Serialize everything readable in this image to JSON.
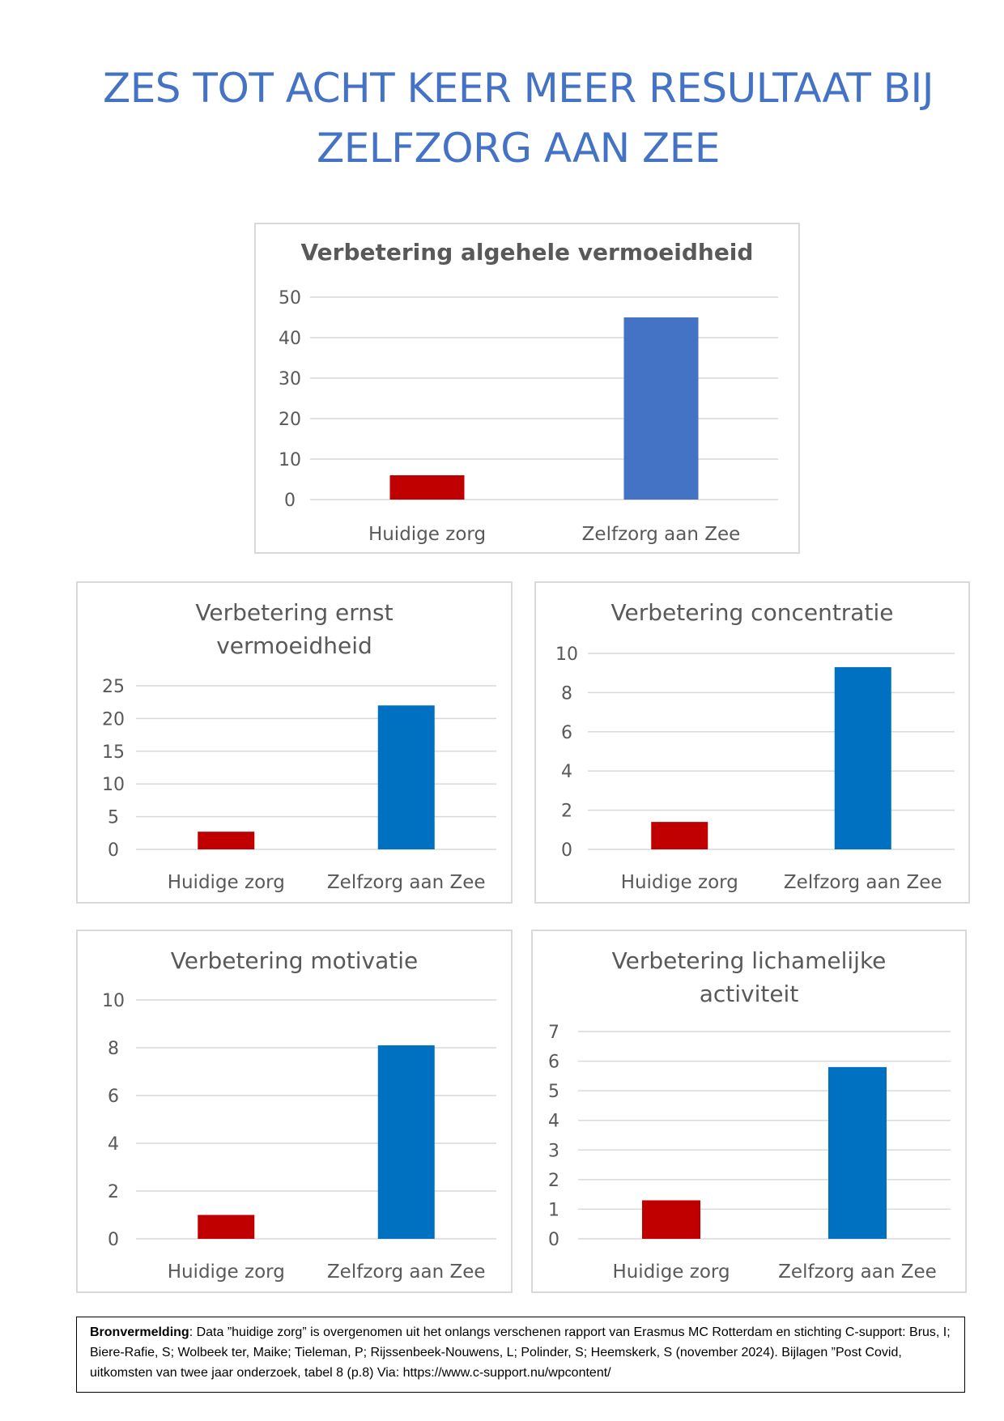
{
  "title": {
    "line1": "ZES TOT ACHT KEER MEER RESULTAAT BIJ",
    "line2": "ZELFZORG AAN ZEE"
  },
  "colors": {
    "title": "#4472C4",
    "current": "#C00000",
    "blue_main": "#4472C4",
    "blue": "#0070C0",
    "grid": "#d9d9d9",
    "text": "#595959"
  },
  "chart_data": [
    {
      "type": "bar",
      "title": "Verbetering algehele vermoeidheid",
      "categories": [
        "Huidige zorg",
        "Zelfzorg aan Zee"
      ],
      "values": [
        6,
        45
      ],
      "ylim": [
        0,
        50
      ],
      "yticks": [
        0,
        10,
        20,
        30,
        40,
        50
      ],
      "colors": [
        "#C00000",
        "#4472C4"
      ],
      "grid": true
    },
    {
      "type": "bar",
      "title": "Verbetering ernst vermoeidheid",
      "title_lines": [
        "Verbetering ernst",
        "vermoeidheid"
      ],
      "categories": [
        "Huidige zorg",
        "Zelfzorg aan Zee"
      ],
      "values": [
        2.7,
        22
      ],
      "ylim": [
        0,
        25
      ],
      "yticks": [
        0,
        5,
        10,
        15,
        20,
        25
      ],
      "colors": [
        "#C00000",
        "#0070C0"
      ],
      "grid": true
    },
    {
      "type": "bar",
      "title": "Verbetering concentratie",
      "categories": [
        "Huidige zorg",
        "Zelfzorg aan Zee"
      ],
      "values": [
        1.4,
        9.3
      ],
      "ylim": [
        0,
        10
      ],
      "yticks": [
        0,
        2,
        4,
        6,
        8,
        10
      ],
      "colors": [
        "#C00000",
        "#0070C0"
      ],
      "grid": true
    },
    {
      "type": "bar",
      "title": "Verbetering motivatie",
      "categories": [
        "Huidige zorg",
        "Zelfzorg aan Zee"
      ],
      "values": [
        1,
        8.1
      ],
      "ylim": [
        0,
        10
      ],
      "yticks": [
        0,
        2,
        4,
        6,
        8,
        10
      ],
      "colors": [
        "#C00000",
        "#0070C0"
      ],
      "grid": true
    },
    {
      "type": "bar",
      "title": "Verbetering lichamelijke activiteit",
      "title_lines": [
        "Verbetering lichamelijke",
        "activiteit"
      ],
      "categories": [
        "Huidige zorg",
        "Zelfzorg aan Zee"
      ],
      "values": [
        1.3,
        5.8
      ],
      "ylim": [
        0,
        7
      ],
      "yticks": [
        0,
        1,
        2,
        3,
        4,
        5,
        6,
        7
      ],
      "colors": [
        "#C00000",
        "#0070C0"
      ],
      "grid": true
    }
  ],
  "footer": {
    "label": "Bronvermelding",
    "text": ": Data ”huidige zorg” is overgenomen uit het onlangs verschenen rapport van Erasmus MC Rotterdam en stichting C-support: Brus, I; Biere-Rafie, S; Wolbeek ter, Maike; Tieleman, P; Rijssenbeek-Nouwens, L; Polinder, S; Heemskerk, S (november 2024). Bijlagen ”Post Covid, uitkomsten van twee jaar onderzoek, tabel 8 (p.8) Via: https://www.c-support.nu/wpcontent/"
  }
}
